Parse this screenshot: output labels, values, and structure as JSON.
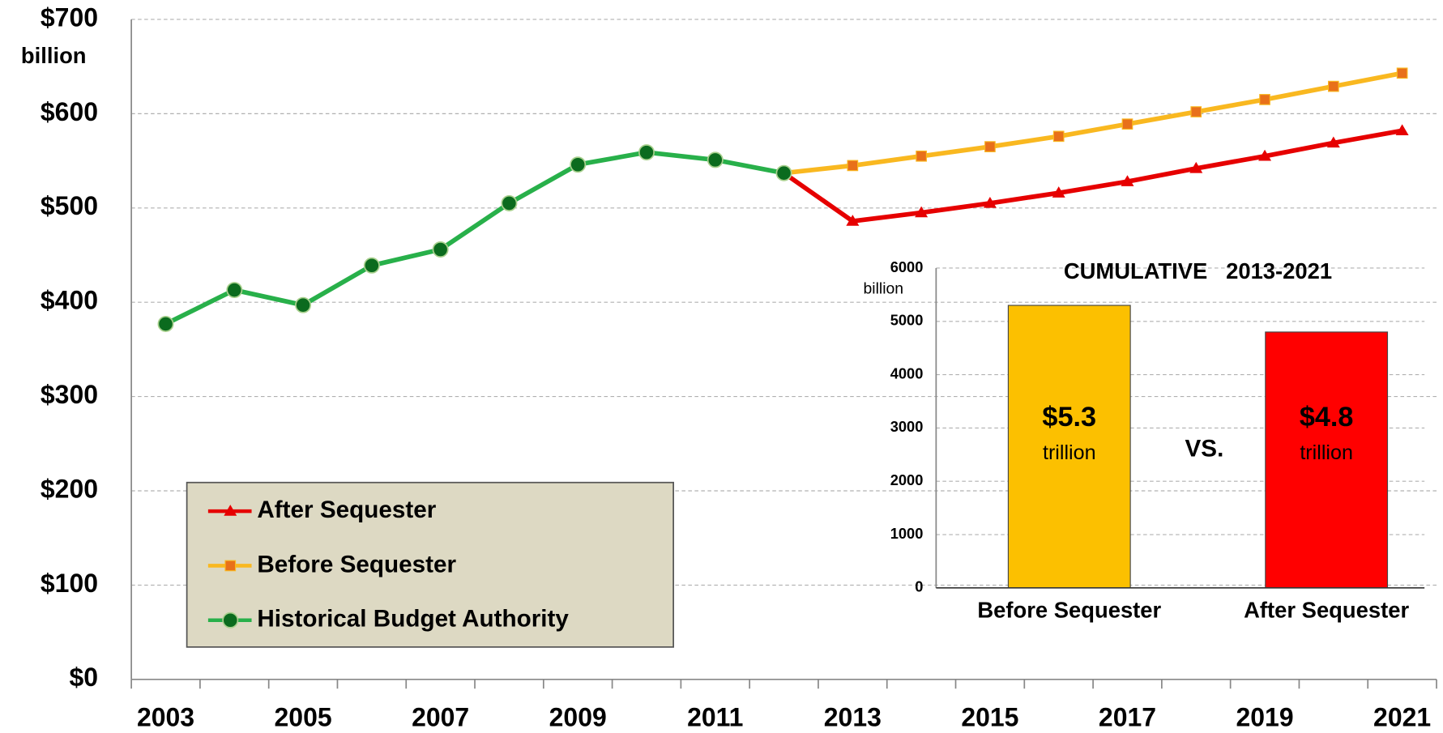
{
  "chart_data": [
    {
      "type": "line",
      "categories": [
        "2003",
        null,
        "2005",
        null,
        "2007",
        null,
        "2009",
        null,
        "2011",
        null,
        "2013",
        null,
        "2015",
        null,
        "2017",
        null,
        "2019",
        null,
        "2021"
      ],
      "y_unit": "billion",
      "ylim": [
        0,
        700
      ],
      "yticks": [
        {
          "value": 0,
          "label": "$0"
        },
        {
          "value": 100,
          "label": "$100"
        },
        {
          "value": 200,
          "label": "$200"
        },
        {
          "value": 300,
          "label": "$300"
        },
        {
          "value": 400,
          "label": "$400"
        },
        {
          "value": 500,
          "label": "$500"
        },
        {
          "value": 600,
          "label": "$600"
        },
        {
          "value": 700,
          "label": "$700"
        }
      ],
      "grid": true,
      "legend": "lower-left",
      "series": [
        {
          "name": "After Sequester",
          "color": "#e60000",
          "marker": "triangle",
          "marker_color": "#e60000",
          "values": [
            null,
            null,
            null,
            null,
            null,
            null,
            null,
            null,
            null,
            537,
            486,
            495,
            505,
            516,
            528,
            542,
            555,
            569,
            582
          ]
        },
        {
          "name": "Before Sequester",
          "color": "#f9b820",
          "marker": "square",
          "marker_color": "#e8701a",
          "values": [
            null,
            null,
            null,
            null,
            null,
            null,
            null,
            null,
            null,
            537,
            545,
            555,
            565,
            576,
            589,
            602,
            615,
            629,
            643
          ]
        },
        {
          "name": "Historical Budget Authority",
          "color": "#28b04a",
          "marker": "circle",
          "marker_color": "#0b6b1e",
          "values": [
            377,
            413,
            397,
            439,
            456,
            505,
            546,
            559,
            551,
            537,
            null,
            null,
            null,
            null,
            null,
            null,
            null,
            null,
            null
          ]
        }
      ]
    },
    {
      "type": "bar",
      "title": "CUMULATIVE   2013-2021",
      "y_unit": "billion",
      "value_unit": "trillion",
      "annotation": "VS.",
      "categories": [
        "Before Sequester",
        "After Sequester"
      ],
      "values": [
        5300,
        4800
      ],
      "value_labels": [
        "$5.3",
        "$4.8"
      ],
      "colors": [
        "#fcc000",
        "#ff0000"
      ],
      "ylim": [
        0,
        6000
      ],
      "yticks": [
        0,
        1000,
        2000,
        3000,
        4000,
        5000,
        6000
      ],
      "grid": true
    }
  ]
}
